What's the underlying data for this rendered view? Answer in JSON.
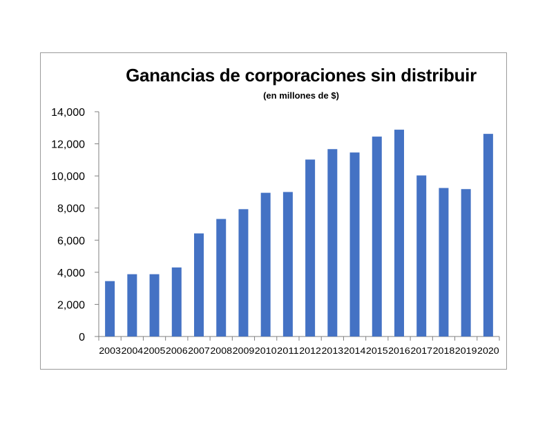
{
  "chart_data": {
    "type": "bar",
    "title": "Ganancias de corporaciones sin distribuir",
    "subtitle": "(en millones de $)",
    "xlabel": "",
    "ylabel": "",
    "categories": [
      "2003",
      "2004",
      "2005",
      "2006",
      "2007",
      "2008",
      "2009",
      "2010",
      "2011",
      "2012",
      "2013",
      "2014",
      "2015",
      "2016",
      "2017",
      "2018",
      "2019",
      "2020"
    ],
    "values": [
      3450,
      3880,
      3880,
      4300,
      6420,
      7320,
      7930,
      8950,
      9000,
      11020,
      11670,
      11460,
      12450,
      12880,
      10030,
      9250,
      9180,
      12620
    ],
    "ylim": [
      0,
      14000
    ],
    "yticks": [
      0,
      2000,
      4000,
      6000,
      8000,
      10000,
      12000,
      14000
    ],
    "ytick_labels": [
      "0",
      "2,000",
      "4,000",
      "6,000",
      "8,000",
      "10,000",
      "12,000",
      "14,000"
    ],
    "bar_color": "#4472c4",
    "grid": false,
    "legend": "none"
  }
}
